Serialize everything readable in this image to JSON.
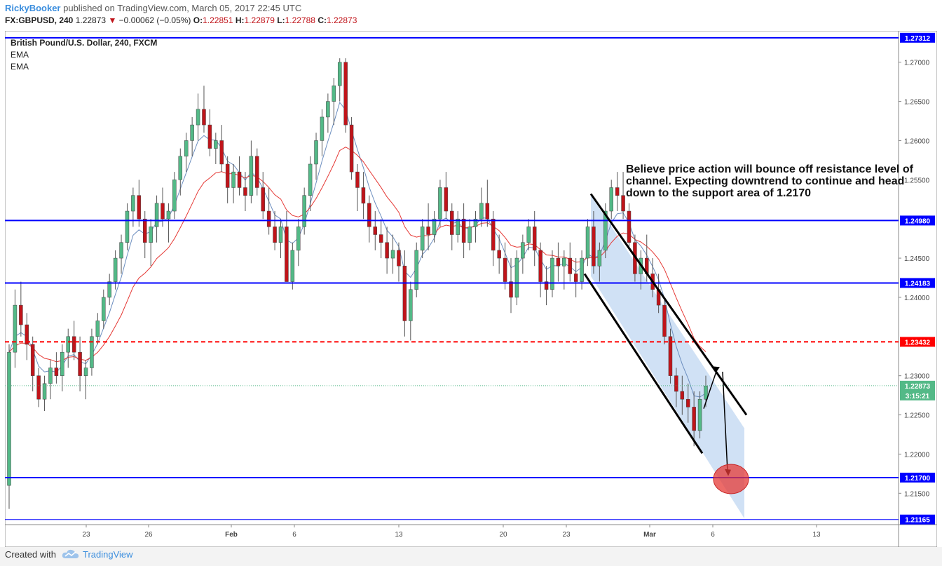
{
  "header": {
    "publisher": "RickyBooker",
    "published_text": "published on TradingView.com, March 05, 2017 22:45 UTC",
    "symbol": "FX:GBPUSD, 240",
    "last": "1.22873",
    "change": "−0.00062 (−0.05%)",
    "open_label": "O:",
    "open": "1.22851",
    "high_label": "H:",
    "high": "1.22879",
    "low_label": "L:",
    "low": "1.22788",
    "close_label": "C:",
    "close": "1.22873"
  },
  "legend": {
    "title": "British Pound/U.S. Dollar, 240, FXCM",
    "ind1": "EMA",
    "ind2": "EMA"
  },
  "annotation": "Believe price action will bounce off resistance level of channel. Expecting downtrend to continue and head down to the support area of 1.2170",
  "footer": {
    "made_with": "Created with",
    "brand": "TradingView"
  },
  "colors": {
    "up": "#53b987",
    "down": "#c0141a",
    "level": "#0000ff",
    "dashed": "#ff0000",
    "ema_fast": "#6c8ebf",
    "ema_slow": "#e53935",
    "channel_fill": "#a9c8ec",
    "marker": "#e53935"
  },
  "chart_data": {
    "type": "candlestick",
    "ylim": [
      1.211,
      1.274
    ],
    "y_ticks": [
      "1.27000",
      "1.26500",
      "1.26000",
      "1.25500",
      "1.24500",
      "1.24000",
      "1.23000",
      "1.22500",
      "1.22000",
      "1.21500"
    ],
    "x_ticks": [
      "23",
      "26",
      "Feb",
      "6",
      "13",
      "20",
      "23",
      "Mar",
      "6",
      "13"
    ],
    "horizontal_levels": [
      {
        "value": 1.27312,
        "label": "1.27312",
        "style": "solid"
      },
      {
        "value": 1.2498,
        "label": "1.24980",
        "style": "solid"
      },
      {
        "value": 1.24183,
        "label": "1.24183",
        "style": "solid"
      },
      {
        "value": 1.23432,
        "label": "1.23432",
        "style": "dashed"
      },
      {
        "value": 1.217,
        "label": "1.21700",
        "style": "solid"
      },
      {
        "value": 1.21165,
        "label": "1.21165",
        "style": "thin"
      }
    ],
    "current_price": "1.22873",
    "countdown": "3:15:21",
    "ohlc": [
      [
        1.216,
        1.234,
        1.213,
        1.233
      ],
      [
        1.233,
        1.241,
        1.231,
        1.239
      ],
      [
        1.239,
        1.242,
        1.235,
        1.2365
      ],
      [
        1.2365,
        1.238,
        1.232,
        1.234
      ],
      [
        1.234,
        1.235,
        1.228,
        1.23
      ],
      [
        1.23,
        1.231,
        1.226,
        1.227
      ],
      [
        1.227,
        1.23,
        1.2255,
        1.229
      ],
      [
        1.229,
        1.232,
        1.227,
        1.231
      ],
      [
        1.231,
        1.233,
        1.229,
        1.23
      ],
      [
        1.23,
        1.234,
        1.228,
        1.233
      ],
      [
        1.233,
        1.236,
        1.231,
        1.235
      ],
      [
        1.235,
        1.237,
        1.232,
        1.233
      ],
      [
        1.233,
        1.235,
        1.228,
        1.23
      ],
      [
        1.23,
        1.232,
        1.227,
        1.231
      ],
      [
        1.231,
        1.236,
        1.23,
        1.235
      ],
      [
        1.235,
        1.238,
        1.234,
        1.237
      ],
      [
        1.237,
        1.241,
        1.236,
        1.24
      ],
      [
        1.24,
        1.243,
        1.239,
        1.242
      ],
      [
        1.242,
        1.246,
        1.241,
        1.245
      ],
      [
        1.245,
        1.248,
        1.243,
        1.247
      ],
      [
        1.247,
        1.252,
        1.246,
        1.251
      ],
      [
        1.251,
        1.254,
        1.249,
        1.253
      ],
      [
        1.253,
        1.255,
        1.249,
        1.25
      ],
      [
        1.25,
        1.251,
        1.245,
        1.247
      ],
      [
        1.247,
        1.25,
        1.244,
        1.249
      ],
      [
        1.249,
        1.253,
        1.247,
        1.252
      ],
      [
        1.252,
        1.254,
        1.249,
        1.25
      ],
      [
        1.25,
        1.252,
        1.247,
        1.251
      ],
      [
        1.251,
        1.256,
        1.25,
        1.255
      ],
      [
        1.255,
        1.259,
        1.253,
        1.258
      ],
      [
        1.258,
        1.261,
        1.256,
        1.26
      ],
      [
        1.26,
        1.263,
        1.258,
        1.262
      ],
      [
        1.262,
        1.266,
        1.26,
        1.264
      ],
      [
        1.264,
        1.267,
        1.261,
        1.262
      ],
      [
        1.262,
        1.264,
        1.258,
        1.259
      ],
      [
        1.259,
        1.261,
        1.257,
        1.26
      ],
      [
        1.26,
        1.262,
        1.256,
        1.257
      ],
      [
        1.257,
        1.258,
        1.252,
        1.254
      ],
      [
        1.254,
        1.257,
        1.252,
        1.256
      ],
      [
        1.256,
        1.258,
        1.253,
        1.254
      ],
      [
        1.254,
        1.256,
        1.251,
        1.253
      ],
      [
        1.253,
        1.26,
        1.252,
        1.258
      ],
      [
        1.258,
        1.259,
        1.253,
        1.254
      ],
      [
        1.254,
        1.256,
        1.25,
        1.251
      ],
      [
        1.251,
        1.254,
        1.248,
        1.249
      ],
      [
        1.249,
        1.251,
        1.246,
        1.247
      ],
      [
        1.247,
        1.25,
        1.245,
        1.249
      ],
      [
        1.249,
        1.251,
        1.242,
        1.242
      ],
      [
        1.242,
        1.247,
        1.241,
        1.246
      ],
      [
        1.246,
        1.25,
        1.244,
        1.249
      ],
      [
        1.249,
        1.254,
        1.248,
        1.253
      ],
      [
        1.253,
        1.258,
        1.251,
        1.257
      ],
      [
        1.257,
        1.261,
        1.255,
        1.26
      ],
      [
        1.26,
        1.264,
        1.258,
        1.263
      ],
      [
        1.263,
        1.266,
        1.261,
        1.265
      ],
      [
        1.265,
        1.268,
        1.262,
        1.267
      ],
      [
        1.267,
        1.2705,
        1.265,
        1.27
      ],
      [
        1.27,
        1.2705,
        1.261,
        1.262
      ],
      [
        1.262,
        1.263,
        1.255,
        1.256
      ],
      [
        1.256,
        1.257,
        1.251,
        1.254
      ],
      [
        1.254,
        1.256,
        1.25,
        1.252
      ],
      [
        1.252,
        1.253,
        1.247,
        1.249
      ],
      [
        1.249,
        1.251,
        1.246,
        1.248
      ],
      [
        1.248,
        1.25,
        1.245,
        1.247
      ],
      [
        1.247,
        1.249,
        1.243,
        1.245
      ],
      [
        1.245,
        1.248,
        1.243,
        1.246
      ],
      [
        1.246,
        1.247,
        1.242,
        1.244
      ],
      [
        1.244,
        1.246,
        1.235,
        1.237
      ],
      [
        1.237,
        1.242,
        1.2345,
        1.241
      ],
      [
        1.241,
        1.247,
        1.24,
        1.246
      ],
      [
        1.246,
        1.25,
        1.245,
        1.249
      ],
      [
        1.249,
        1.252,
        1.246,
        1.248
      ],
      [
        1.248,
        1.251,
        1.247,
        1.25
      ],
      [
        1.25,
        1.255,
        1.249,
        1.254
      ],
      [
        1.254,
        1.256,
        1.25,
        1.251
      ],
      [
        1.251,
        1.252,
        1.246,
        1.248
      ],
      [
        1.248,
        1.251,
        1.247,
        1.25
      ],
      [
        1.25,
        1.252,
        1.245,
        1.247
      ],
      [
        1.247,
        1.25,
        1.246,
        1.249
      ],
      [
        1.249,
        1.251,
        1.247,
        1.25
      ],
      [
        1.25,
        1.254,
        1.249,
        1.252
      ],
      [
        1.252,
        1.255,
        1.249,
        1.25
      ],
      [
        1.25,
        1.251,
        1.244,
        1.246
      ],
      [
        1.246,
        1.248,
        1.243,
        1.245
      ],
      [
        1.245,
        1.247,
        1.241,
        1.242
      ],
      [
        1.242,
        1.245,
        1.238,
        1.24
      ],
      [
        1.24,
        1.246,
        1.239,
        1.245
      ],
      [
        1.245,
        1.248,
        1.243,
        1.247
      ],
      [
        1.247,
        1.25,
        1.246,
        1.249
      ],
      [
        1.249,
        1.251,
        1.244,
        1.246
      ],
      [
        1.246,
        1.247,
        1.24,
        1.242
      ],
      [
        1.242,
        1.244,
        1.239,
        1.241
      ],
      [
        1.241,
        1.246,
        1.24,
        1.245
      ],
      [
        1.245,
        1.247,
        1.242,
        1.244
      ],
      [
        1.244,
        1.246,
        1.241,
        1.245
      ],
      [
        1.245,
        1.247,
        1.242,
        1.243
      ],
      [
        1.243,
        1.245,
        1.24,
        1.242
      ],
      [
        1.242,
        1.246,
        1.241,
        1.245
      ],
      [
        1.245,
        1.25,
        1.244,
        1.249
      ],
      [
        1.249,
        1.251,
        1.243,
        1.244
      ],
      [
        1.244,
        1.247,
        1.242,
        1.246
      ],
      [
        1.246,
        1.252,
        1.245,
        1.251
      ],
      [
        1.251,
        1.255,
        1.25,
        1.254
      ],
      [
        1.254,
        1.256,
        1.251,
        1.253
      ],
      [
        1.253,
        1.256,
        1.25,
        1.251
      ],
      [
        1.251,
        1.252,
        1.246,
        1.247
      ],
      [
        1.247,
        1.248,
        1.242,
        1.243
      ],
      [
        1.243,
        1.246,
        1.241,
        1.245
      ],
      [
        1.245,
        1.248,
        1.242,
        1.243
      ],
      [
        1.243,
        1.245,
        1.24,
        1.241
      ],
      [
        1.241,
        1.243,
        1.238,
        1.239
      ],
      [
        1.239,
        1.24,
        1.234,
        1.235
      ],
      [
        1.235,
        1.236,
        1.229,
        1.23
      ],
      [
        1.23,
        1.231,
        1.226,
        1.228
      ],
      [
        1.228,
        1.23,
        1.225,
        1.227
      ],
      [
        1.227,
        1.229,
        1.224,
        1.226
      ],
      [
        1.226,
        1.228,
        1.221,
        1.223
      ],
      [
        1.223,
        1.228,
        1.222,
        1.227
      ],
      [
        1.227,
        1.23,
        1.226,
        1.2287
      ]
    ]
  }
}
